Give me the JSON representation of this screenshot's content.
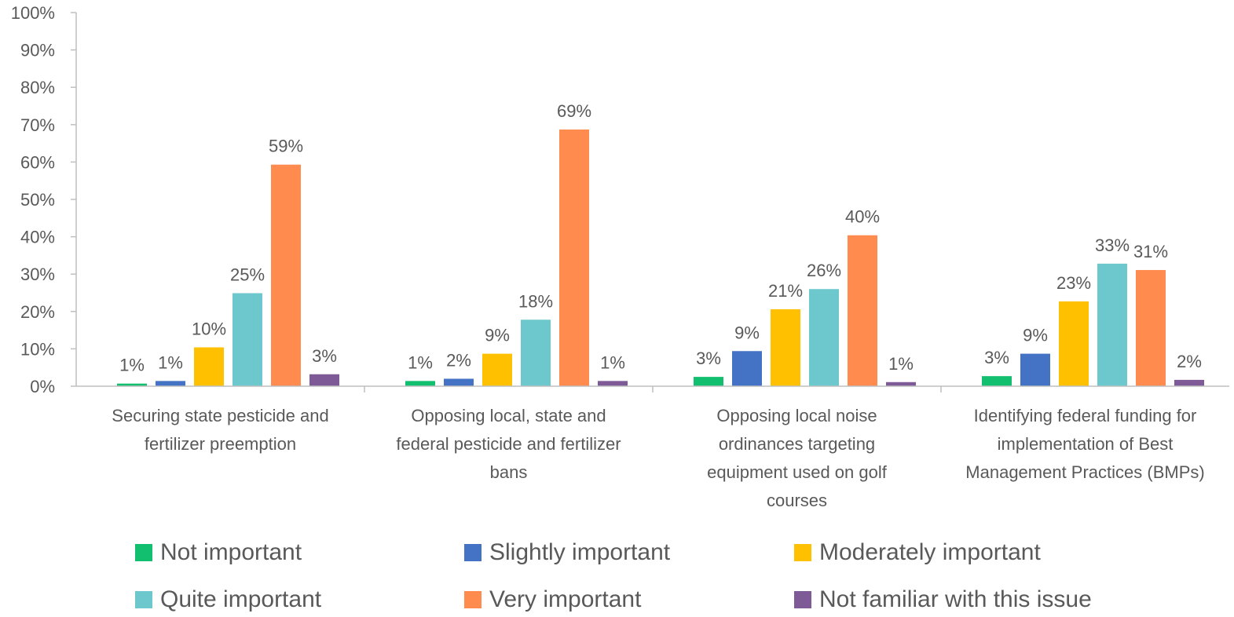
{
  "chart_data": {
    "type": "bar",
    "title": "",
    "xlabel": "",
    "ylabel": "",
    "ylim": [
      0,
      100
    ],
    "yticks": [
      "0%",
      "10%",
      "20%",
      "30%",
      "40%",
      "50%",
      "60%",
      "70%",
      "80%",
      "90%",
      "100%"
    ],
    "grid": false,
    "legend_position": "bottom",
    "categories": [
      [
        "Securing state pesticide and",
        "fertilizer preemption"
      ],
      [
        "Opposing local, state and",
        "federal pesticide and fertilizer",
        "bans"
      ],
      [
        "Opposing local noise",
        "ordinances targeting",
        "equipment used on golf",
        "courses"
      ],
      [
        "Identifying federal funding for",
        "implementation of Best",
        "Management Practices (BMPs)"
      ]
    ],
    "series": [
      {
        "name": "Not important",
        "color": "#12BF6F",
        "values": [
          0.7,
          1.4,
          2.5,
          2.7
        ],
        "labels": [
          "1%",
          "1%",
          "3%",
          "3%"
        ]
      },
      {
        "name": "Slightly important",
        "color": "#4472C4",
        "values": [
          1.4,
          2.0,
          9.4,
          8.7
        ],
        "labels": [
          "1%",
          "2%",
          "9%",
          "9%"
        ]
      },
      {
        "name": "Moderately important",
        "color": "#FFC000",
        "values": [
          10.4,
          8.7,
          20.6,
          22.7
        ],
        "labels": [
          "10%",
          "9%",
          "21%",
          "23%"
        ]
      },
      {
        "name": "Quite important",
        "color": "#6CC8CC",
        "values": [
          24.9,
          17.8,
          26.0,
          32.8
        ],
        "labels": [
          "25%",
          "18%",
          "26%",
          "33%"
        ]
      },
      {
        "name": "Very important",
        "color": "#FF8B4F",
        "values": [
          59.3,
          68.7,
          40.4,
          31.1
        ],
        "labels": [
          "59%",
          "69%",
          "40%",
          "31%"
        ]
      },
      {
        "name": "Not familiar with this issue",
        "color": "#7E5A96",
        "values": [
          3.2,
          1.4,
          1.1,
          1.7
        ],
        "labels": [
          "3%",
          "1%",
          "1%",
          "2%"
        ]
      }
    ]
  }
}
